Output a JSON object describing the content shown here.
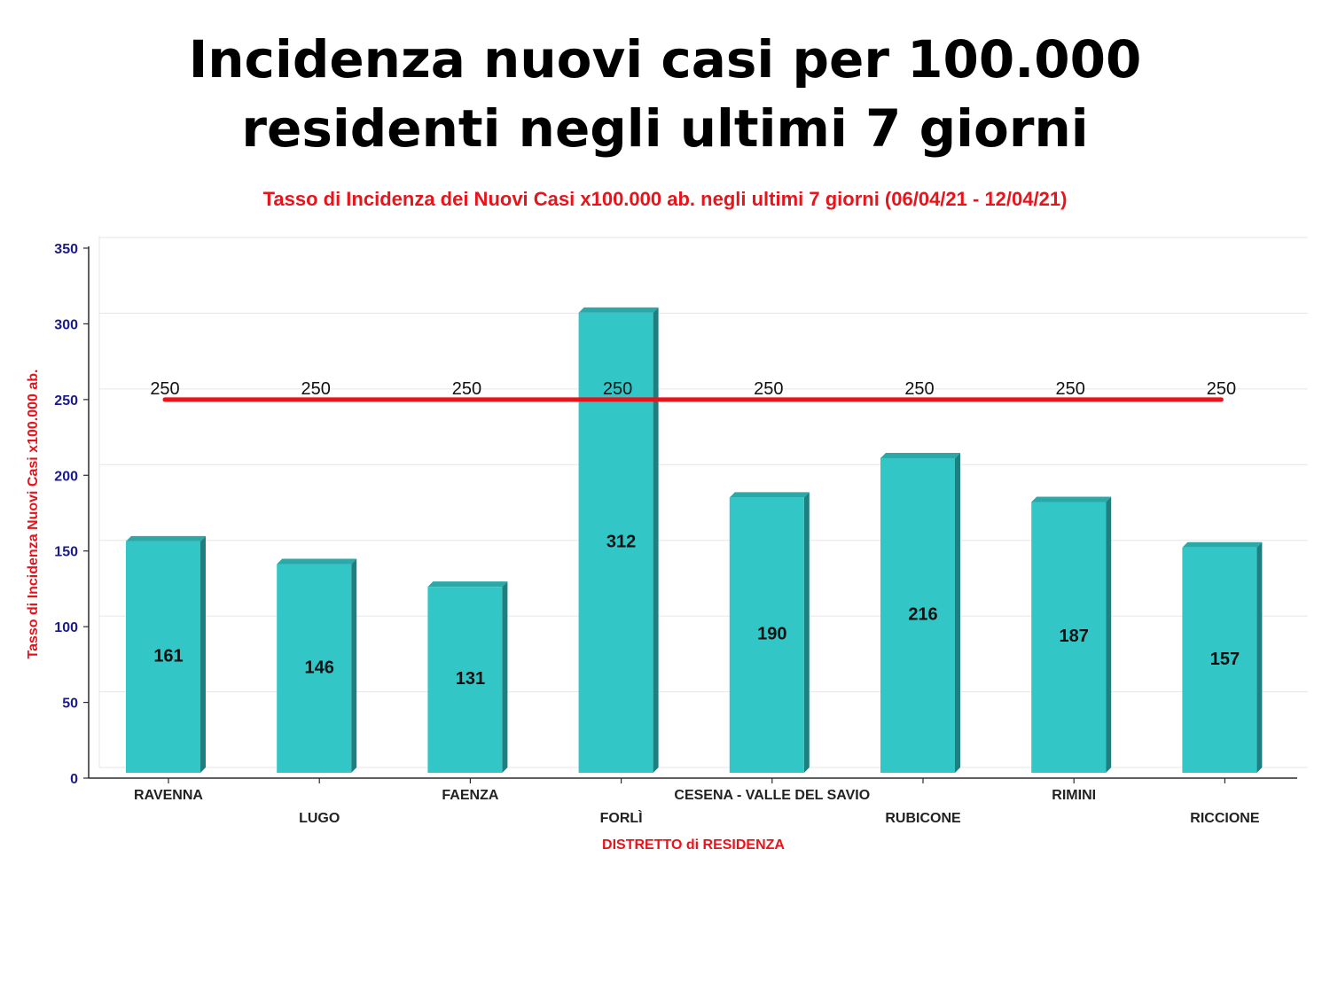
{
  "slide": {
    "title_line1": "Incidenza nuovi casi per 100.000",
    "title_line2": "residenti negli ultimi 7 giorni"
  },
  "chart_data": {
    "type": "bar",
    "title": "Tasso di Incidenza dei Nuovi Casi x100.000 ab. negli ultimi 7 giorni (06/04/21 - 12/04/21)",
    "xlabel": "DISTRETTO di RESIDENZA",
    "ylabel": "Tasso di Incidenza Nuovi Casi x100.000 ab.",
    "ylim": [
      0,
      350
    ],
    "yticks": [
      0,
      50,
      100,
      150,
      200,
      250,
      300,
      350
    ],
    "categories": [
      "RAVENNA",
      "LUGO",
      "FAENZA",
      "FORLÌ",
      "CESENA - VALLE DEL SAVIO",
      "RUBICONE",
      "RIMINI",
      "RICCIONE"
    ],
    "series": [
      {
        "type": "bar",
        "values": [
          161,
          146,
          131,
          312,
          190,
          216,
          187,
          157
        ]
      },
      {
        "type": "line",
        "values": [
          250,
          250,
          250,
          250,
          250,
          250,
          250,
          250
        ]
      }
    ],
    "grid": true,
    "colors": {
      "bar": "#33c6c6",
      "bar_top": "#2aa9a8",
      "bar_side": "#1f7f7e",
      "threshold": "#e8141b",
      "axis_text": "#1a1a8c",
      "label_red": "#e8141b"
    }
  }
}
